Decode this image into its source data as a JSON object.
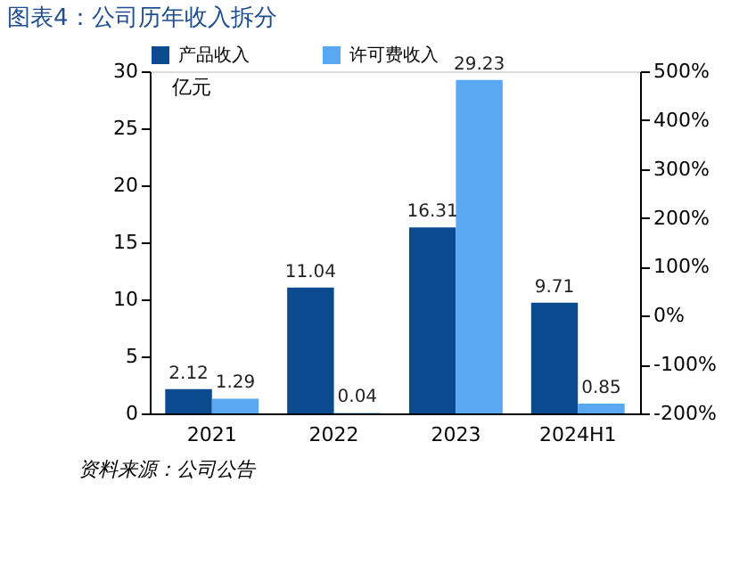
{
  "chart_data": {
    "type": "bar",
    "title": "图表4：公司历年收入拆分",
    "ylabel": "亿元",
    "categories": [
      "2021",
      "2022",
      "2023",
      "2024H1"
    ],
    "series": [
      {
        "name": "产品收入",
        "color": "#0b4a8f",
        "values": [
          2.12,
          11.04,
          16.31,
          9.71
        ]
      },
      {
        "name": "许可费收入",
        "color": "#5aa8f2",
        "values": [
          1.29,
          0.04,
          29.23,
          0.85
        ]
      }
    ],
    "ylim": [
      0,
      30
    ],
    "yticks": [
      0,
      5,
      10,
      15,
      20,
      25,
      30
    ],
    "y2lim": [
      -200,
      500
    ],
    "y2ticks": [
      {
        "value": -200,
        "label": "-200%"
      },
      {
        "value": -100,
        "label": "-100%"
      },
      {
        "value": 0,
        "label": "0%"
      },
      {
        "value": 100,
        "label": "100%"
      },
      {
        "value": 200,
        "label": "200%"
      },
      {
        "value": 300,
        "label": "300%"
      },
      {
        "value": 400,
        "label": "400%"
      },
      {
        "value": 500,
        "label": "500%"
      }
    ],
    "data_labels": true,
    "legend": "top",
    "grid": false,
    "annotations": [
      "资料来源：公司公告"
    ]
  }
}
